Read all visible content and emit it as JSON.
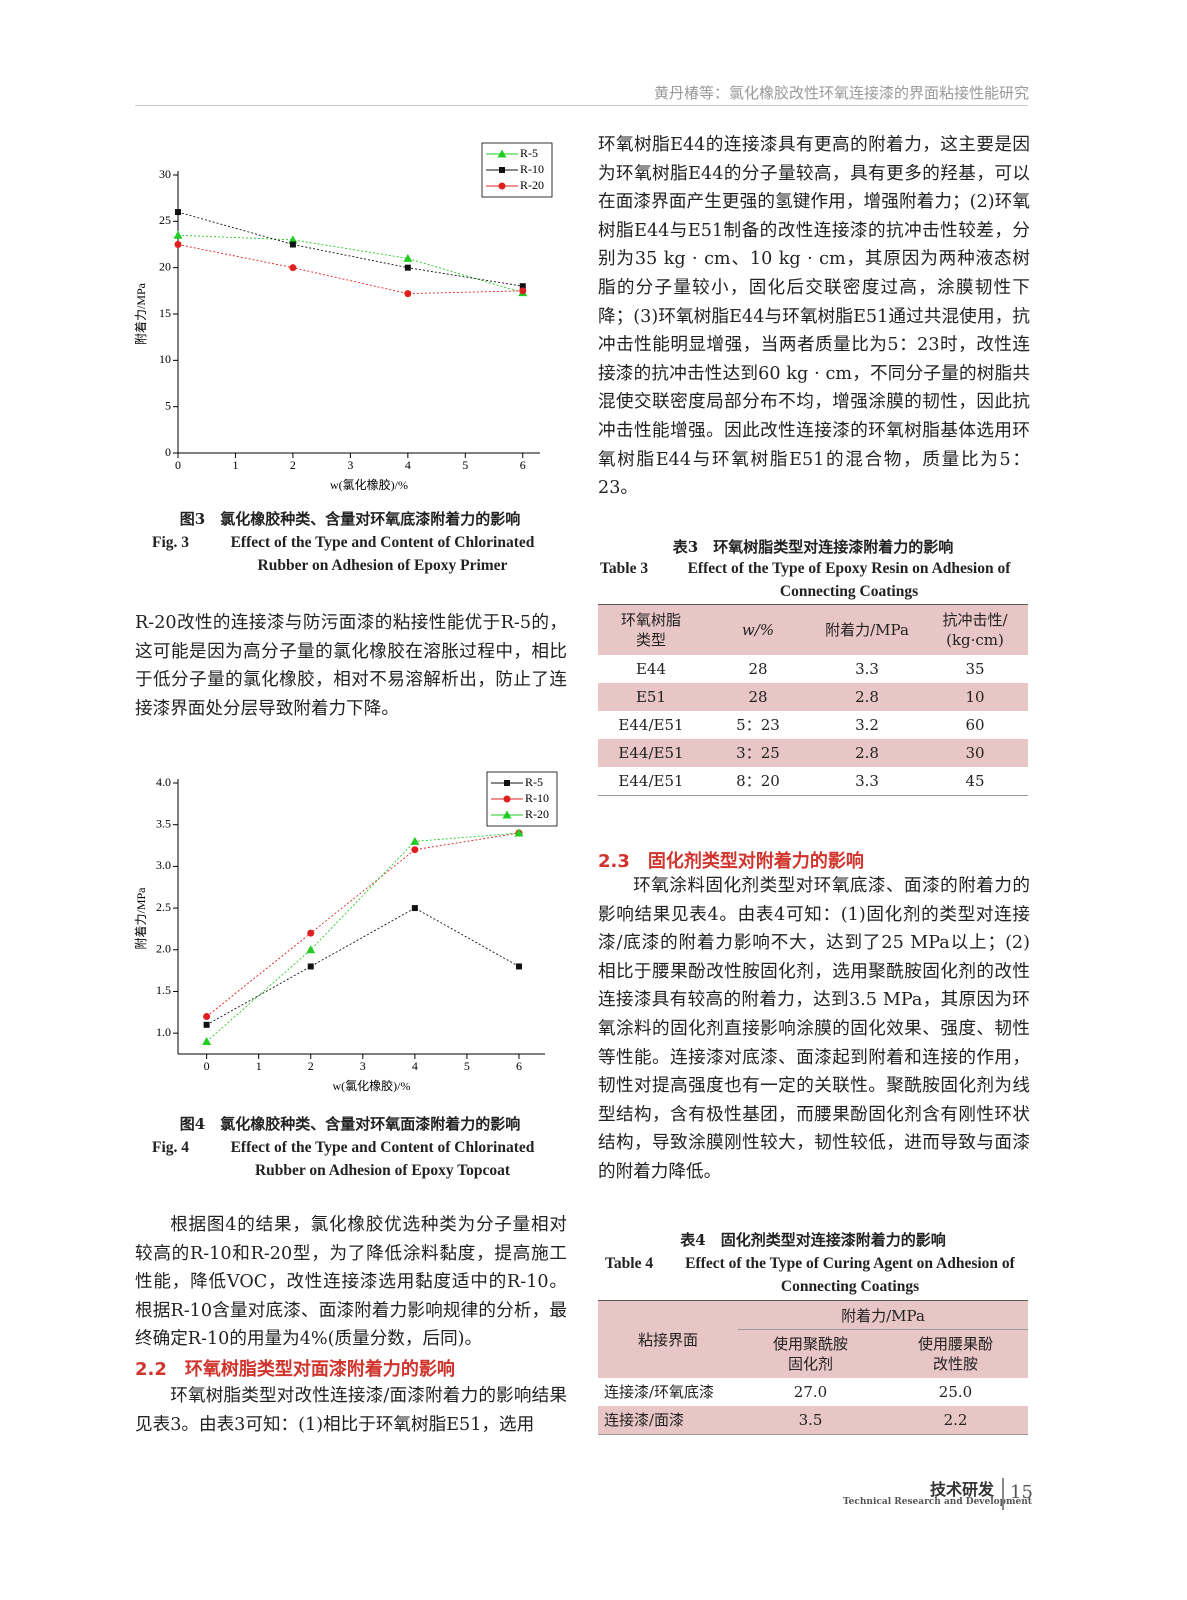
{
  "header": {
    "running_title": "黄丹椿等：氯化橡胶改性环氧连接漆的界面粘接性能研究"
  },
  "figures": [
    {
      "chart_data": {
        "type": "line",
        "x": [
          0,
          2,
          4,
          6
        ],
        "xlim": [
          0,
          6.3
        ],
        "xticks": [
          0,
          1,
          2,
          3,
          4,
          5,
          6
        ],
        "ylim": [
          0,
          30
        ],
        "yticks": [
          0,
          5,
          10,
          15,
          20,
          25,
          30
        ],
        "xlabel": "w(氯化橡胶)/%",
        "ylabel": "附着力/MPa",
        "legend": "upper right",
        "series": [
          {
            "name": "R-5",
            "color": "#22cc22",
            "marker": "triangle",
            "values": [
              23.5,
              23,
              21,
              17.3
            ]
          },
          {
            "name": "R-10",
            "color": "#111111",
            "marker": "square",
            "values": [
              26,
              22.5,
              20,
              18
            ]
          },
          {
            "name": "R-20",
            "color": "#e02020",
            "marker": "circle",
            "values": [
              22.5,
              20,
              17.2,
              17.5
            ]
          }
        ]
      },
      "caption": {
        "cn": "图3　氯化橡胶种类、含量对环氧底漆附着力的影响",
        "en_label": "Fig. 3",
        "en": "Effect of the Type and Content of Chlorinated Rubber on Adhesion of Epoxy Primer"
      }
    },
    {
      "chart_data": {
        "type": "line",
        "x": [
          0,
          2,
          4,
          6
        ],
        "xlim": [
          -0.55,
          6.5
        ],
        "xticks": [
          0,
          1,
          2,
          3,
          4,
          5,
          6
        ],
        "ylim": [
          0.75,
          4.0
        ],
        "yticks": [
          {
            "value": 1.0,
            "label": "1.0"
          },
          1.5,
          {
            "value": 2.0,
            "label": "2.0"
          },
          2.5,
          {
            "value": 3.0,
            "label": "3.0"
          },
          3.5,
          {
            "value": 4.0,
            "label": "4.0"
          }
        ],
        "xlabel": "w(氯化橡胶)/%",
        "ylabel": "附着力/MPa",
        "legend": "upper right",
        "series": [
          {
            "name": "R-5",
            "color": "#111111",
            "marker": "square",
            "values": [
              1.1,
              1.8,
              2.5,
              1.8
            ]
          },
          {
            "name": "R-10",
            "color": "#e02020",
            "marker": "circle",
            "values": [
              1.2,
              2.2,
              3.2,
              3.4
            ]
          },
          {
            "name": "R-20",
            "color": "#22cc22",
            "marker": "triangle",
            "values": [
              0.9,
              2.0,
              3.3,
              3.4
            ]
          }
        ]
      },
      "caption": {
        "cn": "图4　氯化橡胶种类、含量对环氧面漆附着力的影响",
        "en_label": "Fig. 4",
        "en": "Effect of the Type and Content of Chlorinated Rubber on Adhesion of Epoxy Topcoat"
      }
    }
  ],
  "left_column": {
    "para1": "R-20改性的连接漆与防污面漆的粘接性能优于R-5的，这可能是因为高分子量的氯化橡胶在溶胀过程中，相比于低分子量的氯化橡胶，相对不易溶解析出，防止了连接漆界面处分层导致附着力下降。",
    "para2": "根据图4的结果，氯化橡胶优选种类为分子量相对较高的R-10和R-20型，为了降低涂料黏度，提高施工性能，降低VOC，改性连接漆选用黏度适中的R-10。根据R-10含量对底漆、面漆附着力影响规律的分析，最终确定R-10的用量为4%(质量分数，后同)。",
    "section_2_2": {
      "number": "2.2",
      "title": "环氧树脂类型对面漆附着力的影响"
    },
    "para3": "环氧树脂类型对改性连接漆/面漆附着力的影响结果见表3。由表3可知：(1)相比于环氧树脂E51，选用"
  },
  "right_column": {
    "para1": "环氧树脂E44的连接漆具有更高的附着力，这主要是因为环氧树脂E44的分子量较高，具有更多的羟基，可以在面漆界面产生更强的氢键作用，增强附着力；(2)环氧树脂E44与E51制备的改性连接漆的抗冲击性较差，分别为35 kg · cm、10 kg · cm，其原因为两种液态树脂的分子量较小，固化后交联密度过高，涂膜韧性下降；(3)环氧树脂E44与环氧树脂E51通过共混使用，抗冲击性能明显增强，当两者质量比为5：23时，改性连接漆的抗冲击性达到60 kg · cm，不同分子量的树脂共混使交联密度局部分布不均，增强涂膜的韧性，因此抗冲击性能增强。因此改性连接漆的环氧树脂基体选用环氧树脂E44与环氧树脂E51的混合物，质量比为5：23。",
    "table3": {
      "title_cn": "表3　环氧树脂类型对连接漆附着力的影响",
      "title_en_label": "Table 3",
      "title_en": "Effect of the Type of Epoxy Resin on Adhesion of Connecting Coatings",
      "header": [
        "环氧树脂\n类型",
        "w/%",
        "附着力/MPa",
        "抗冲击性/\n(kg·cm)"
      ],
      "rows": [
        [
          "E44",
          "28",
          "3.3",
          "35"
        ],
        [
          "E51",
          "28",
          "2.8",
          "10"
        ],
        [
          "E44/E51",
          "5：23",
          "3.2",
          "60"
        ],
        [
          "E44/E51",
          "3：25",
          "2.8",
          "30"
        ],
        [
          "E44/E51",
          "8：20",
          "3.3",
          "45"
        ]
      ]
    },
    "section_2_3": {
      "number": "2.3",
      "title": "固化剂类型对附着力的影响"
    },
    "para2": "环氧涂料固化剂类型对环氧底漆、面漆的附着力的影响结果见表4。由表4可知：(1)固化剂的类型对连接漆/底漆的附着力影响不大，达到了25 MPa以上；(2)相比于腰果酚改性胺固化剂，选用聚酰胺固化剂的改性连接漆具有较高的附着力，达到3.5 MPa，其原因为环氧涂料的固化剂直接影响涂膜的固化效果、强度、韧性等性能。连接漆对底漆、面漆起到附着和连接的作用，韧性对提高强度也有一定的关联性。聚酰胺固化剂为线型结构，含有极性基团，而腰果酚固化剂含有刚性环状结构，导致涂膜刚性较大，韧性较低，进而导致与面漆的附着力降低。",
    "table4": {
      "title_cn": "表4　固化剂类型对连接漆附着力的影响",
      "title_en_label": "Table 4",
      "title_en": "Effect of the Type of Curing Agent on Adhesion of Connecting Coatings",
      "header_interface": "粘接界面",
      "header_group": "附着力/MPa",
      "header_sub": [
        "使用聚酰胺\n固化剂",
        "使用腰果酚\n改性胺"
      ],
      "rows": [
        [
          "连接漆/环氧底漆",
          "27.0",
          "25.0"
        ],
        [
          "连接漆/面漆",
          "3.5",
          "2.2"
        ]
      ]
    }
  },
  "footer": {
    "section_cn": "技术研发",
    "section_en": "Technical Research and Development",
    "page": "15"
  }
}
